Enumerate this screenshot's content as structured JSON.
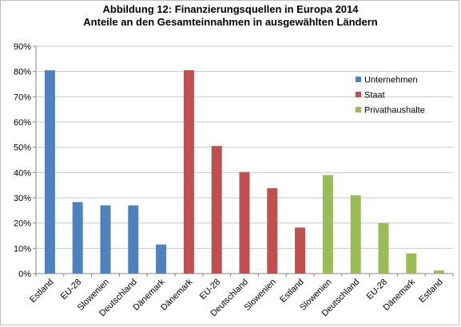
{
  "title": "Abbildung 12: Finanzierungsquellen in Europa 2014",
  "subtitle": "Anteile an den Gesamteinnahmen in ausgewählten Ländern",
  "chart_data": {
    "type": "bar",
    "title": "Abbildung 12: Finanzierungsquellen in Europa 2014",
    "subtitle": "Anteile an den Gesamteinnahmen in ausgewählten Ländern",
    "xlabel": "",
    "ylabel": "",
    "ylim": [
      0,
      90
    ],
    "y_tick_step": 10,
    "y_tick_format": "percent",
    "grid": true,
    "legend_position": "right",
    "series": [
      {
        "name": "Unternehmen",
        "color": "#4f81bd",
        "categories": [
          "Estland",
          "EU-28",
          "Slowenien",
          "Deutschland",
          "Dänemark"
        ],
        "values": [
          80.5,
          28.3,
          27,
          27,
          11.5
        ]
      },
      {
        "name": "Staat",
        "color": "#c0504d",
        "categories": [
          "Dänemark",
          "EU-28",
          "Deutschland",
          "Slowenien",
          "Estland"
        ],
        "values": [
          80.5,
          50.5,
          40.2,
          33.8,
          18.2
        ]
      },
      {
        "name": "Privathaushalte",
        "color": "#9bbb59",
        "categories": [
          "Slowenien",
          "Deutschland",
          "EU-28",
          "Dänemark",
          "Estland"
        ],
        "values": [
          39,
          31,
          20,
          8,
          1.2
        ]
      }
    ]
  }
}
